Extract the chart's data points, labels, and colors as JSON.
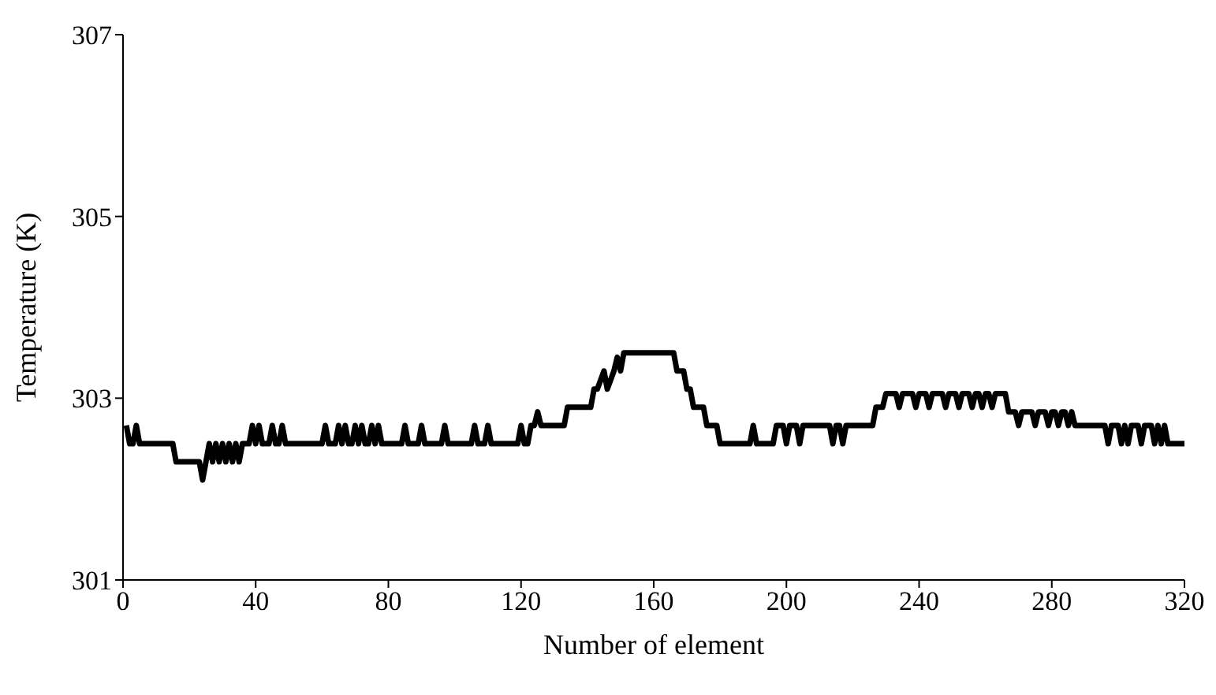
{
  "chart_data": {
    "type": "line",
    "xlabel": "Number of element",
    "ylabel": "Temperature (K)",
    "xlim": [
      0,
      320
    ],
    "xticks": [
      0,
      40,
      80,
      120,
      160,
      200,
      240,
      280,
      320
    ],
    "ylim": [
      301,
      307
    ],
    "yticks": [
      301,
      303,
      305,
      307
    ],
    "grid": false,
    "marker": "none",
    "line_style": "solid",
    "series": [
      {
        "color": "#000000",
        "x": [
          1,
          2,
          3,
          4,
          5,
          15,
          16,
          23,
          24,
          25,
          26,
          27,
          28,
          29,
          30,
          31,
          32,
          33,
          34,
          35,
          36,
          38,
          39,
          40,
          41,
          42,
          44,
          45,
          46,
          47,
          48,
          49,
          60,
          61,
          62,
          64,
          65,
          66,
          67,
          68,
          69,
          70,
          71,
          72,
          73,
          74,
          75,
          76,
          77,
          78,
          84,
          85,
          86,
          89,
          90,
          91,
          96,
          97,
          98,
          105,
          106,
          107,
          109,
          110,
          111,
          119,
          120,
          121,
          122,
          123,
          124,
          125,
          126,
          133,
          134,
          141,
          142,
          143,
          145,
          146,
          148,
          149,
          150,
          151,
          166,
          167,
          169,
          170,
          171,
          172,
          175,
          176,
          179,
          180,
          189,
          190,
          191,
          196,
          197,
          199,
          200,
          201,
          203,
          204,
          205,
          213,
          214,
          215,
          216,
          217,
          218,
          226,
          227,
          229,
          230,
          233,
          234,
          235,
          238,
          239,
          240,
          242,
          243,
          244,
          247,
          248,
          249,
          251,
          252,
          253,
          255,
          256,
          257,
          258,
          259,
          260,
          261,
          262,
          263,
          266,
          267,
          269,
          270,
          271,
          274,
          275,
          276,
          278,
          279,
          280,
          281,
          282,
          283,
          284,
          285,
          286,
          287,
          296,
          297,
          298,
          300,
          301,
          302,
          303,
          304,
          306,
          307,
          308,
          310,
          311,
          312,
          313,
          314,
          315,
          316,
          320
        ],
        "values": [
          302.7,
          302.5,
          302.5,
          302.7,
          302.5,
          302.5,
          302.3,
          302.3,
          302.1,
          302.3,
          302.5,
          302.3,
          302.5,
          302.3,
          302.5,
          302.3,
          302.5,
          302.3,
          302.5,
          302.3,
          302.5,
          302.5,
          302.7,
          302.5,
          302.7,
          302.5,
          302.5,
          302.7,
          302.5,
          302.5,
          302.7,
          302.5,
          302.5,
          302.7,
          302.5,
          302.5,
          302.7,
          302.5,
          302.7,
          302.5,
          302.5,
          302.7,
          302.5,
          302.7,
          302.5,
          302.5,
          302.7,
          302.5,
          302.7,
          302.5,
          302.5,
          302.7,
          302.5,
          302.5,
          302.7,
          302.5,
          302.5,
          302.7,
          302.5,
          302.5,
          302.7,
          302.5,
          302.5,
          302.7,
          302.5,
          302.5,
          302.7,
          302.5,
          302.5,
          302.7,
          302.7,
          302.85,
          302.7,
          302.7,
          302.9,
          302.9,
          303.1,
          303.1,
          303.3,
          303.1,
          303.3,
          303.45,
          303.3,
          303.5,
          303.5,
          303.3,
          303.3,
          303.1,
          303.1,
          302.9,
          302.9,
          302.7,
          302.7,
          302.5,
          302.5,
          302.7,
          302.5,
          302.5,
          302.7,
          302.7,
          302.5,
          302.7,
          302.7,
          302.5,
          302.7,
          302.7,
          302.5,
          302.7,
          302.7,
          302.5,
          302.7,
          302.7,
          302.9,
          302.9,
          303.05,
          303.05,
          302.9,
          303.05,
          303.05,
          302.9,
          303.05,
          303.05,
          302.9,
          303.05,
          303.05,
          302.9,
          303.05,
          303.05,
          302.9,
          303.05,
          303.05,
          302.9,
          303.05,
          303.05,
          302.9,
          303.05,
          303.05,
          302.9,
          303.05,
          303.05,
          302.85,
          302.85,
          302.7,
          302.85,
          302.85,
          302.7,
          302.85,
          302.85,
          302.7,
          302.85,
          302.85,
          302.7,
          302.85,
          302.85,
          302.7,
          302.85,
          302.7,
          302.7,
          302.5,
          302.7,
          302.7,
          302.5,
          302.7,
          302.5,
          302.7,
          302.7,
          302.5,
          302.7,
          302.7,
          302.5,
          302.7,
          302.5,
          302.7,
          302.5,
          302.5,
          302.5
        ]
      }
    ]
  }
}
